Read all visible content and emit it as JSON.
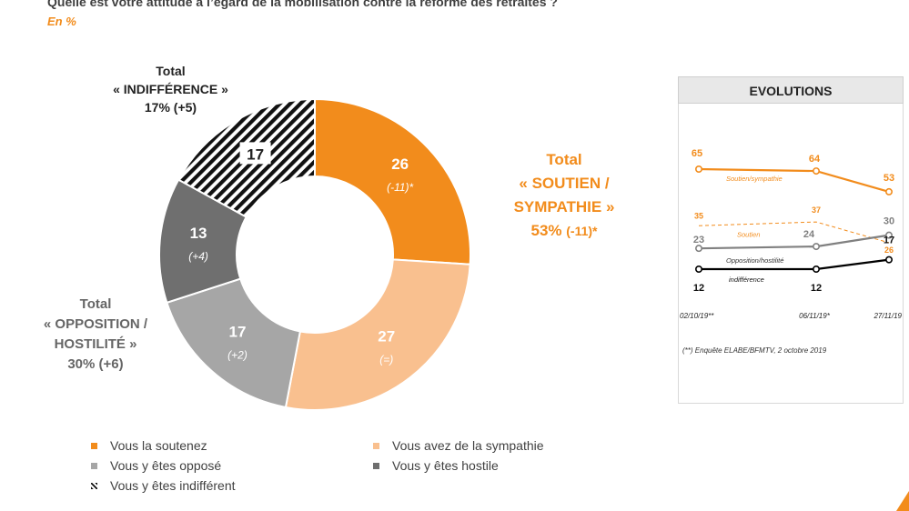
{
  "header": {
    "title": "Quelle est votre attitude à l’égard de la mobilisation contre la réforme des retraites ?",
    "subtitle": "En %"
  },
  "chart_data": [
    {
      "type": "pie",
      "variant": "donut",
      "slices": [
        {
          "label": "Vous la soutenez",
          "value": 26,
          "value_text": "26",
          "change": "(-11)*",
          "color": "#f28c1c",
          "pattern": "solid"
        },
        {
          "label": "Vous avez de la sympathie",
          "value": 27,
          "value_text": "27",
          "change": "(=)",
          "color": "#f9c08f",
          "pattern": "solid"
        },
        {
          "label": "Vous y êtes opposé",
          "value": 17,
          "value_text": "17",
          "change": "(+2)",
          "color": "#a6a6a6",
          "pattern": "solid"
        },
        {
          "label": "Vous y êtes hostile",
          "value": 13,
          "value_text": "13",
          "change": "(+4)",
          "color": "#6f6f6f",
          "pattern": "solid"
        },
        {
          "label": "Vous y êtes indifférent",
          "value": 17,
          "value_text": "17",
          "change": "",
          "color": "#000000",
          "pattern": "hatched"
        }
      ],
      "totals": {
        "indifference": {
          "line1": "Total",
          "line2": "« INDIFFÉRENCE »",
          "line3": "17% (+5)"
        },
        "soutien": {
          "line1": "Total",
          "line2": "« SOUTIEN /",
          "line3": "SYMPATHIE »",
          "line4_value": "53%",
          "line4_change": "(-11)*"
        },
        "opposition": {
          "line1": "Total",
          "line2": "« OPPOSITION /",
          "line3": "HOSTILITÉ »",
          "line4": "30% (+6)"
        }
      },
      "legend_position": "bottom"
    },
    {
      "type": "line",
      "title": "EVOLUTIONS",
      "x": [
        "02/10/19**",
        "06/11/19*",
        "27/11/19"
      ],
      "series": [
        {
          "name": "Soutien/sympathie",
          "values": [
            65,
            64,
            53
          ],
          "color": "#f28c1c",
          "style": "solid",
          "value_labels": [
            "65",
            "64",
            "53"
          ]
        },
        {
          "name": "Soutien",
          "values": [
            35,
            37,
            26
          ],
          "color": "#f28c1c",
          "style": "dashed",
          "value_labels": [
            "35",
            "37",
            "26"
          ]
        },
        {
          "name": "Opposition/hostilité",
          "values": [
            23,
            24,
            30
          ],
          "color": "#808080",
          "style": "solid",
          "value_labels": [
            "23",
            "24",
            "30"
          ]
        },
        {
          "name": "indifférence",
          "values": [
            12,
            12,
            17
          ],
          "color": "#000000",
          "style": "solid",
          "value_labels": [
            "12",
            "12",
            "17"
          ]
        }
      ],
      "footnote": "(**) Enquête ELABE/BFMTV, 2 octobre 2019"
    }
  ]
}
